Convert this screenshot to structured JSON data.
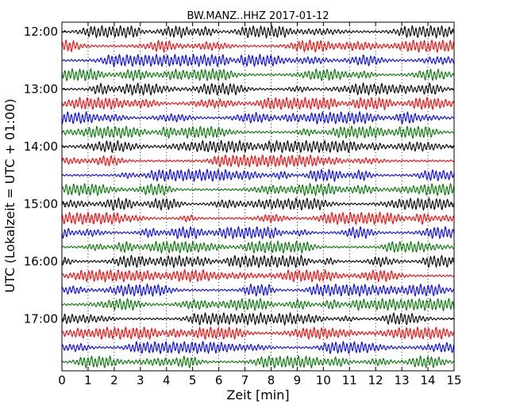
{
  "chart_data": {
    "type": "line",
    "title": "BW.MANZ..HHZ 2017-01-12",
    "xlabel": "Zeit  [min]",
    "ylabel": "UTC (Lokalzeit = UTC + 01:00)",
    "xlim": [
      0,
      15
    ],
    "x_ticks": [
      "0",
      "1",
      "2",
      "3",
      "4",
      "5",
      "6",
      "7",
      "8",
      "9",
      "10",
      "11",
      "12",
      "13",
      "14",
      "15"
    ],
    "y_ticks": [
      "12:00",
      "13:00",
      "14:00",
      "15:00",
      "16:00",
      "17:00"
    ],
    "trace_interval_minutes": 15,
    "trace_count": 24,
    "trace_colors": [
      "#000000",
      "#ff0000",
      "#0000ff",
      "#007700"
    ],
    "grid": "vertical dotted lines at each minute",
    "legend": "none"
  }
}
